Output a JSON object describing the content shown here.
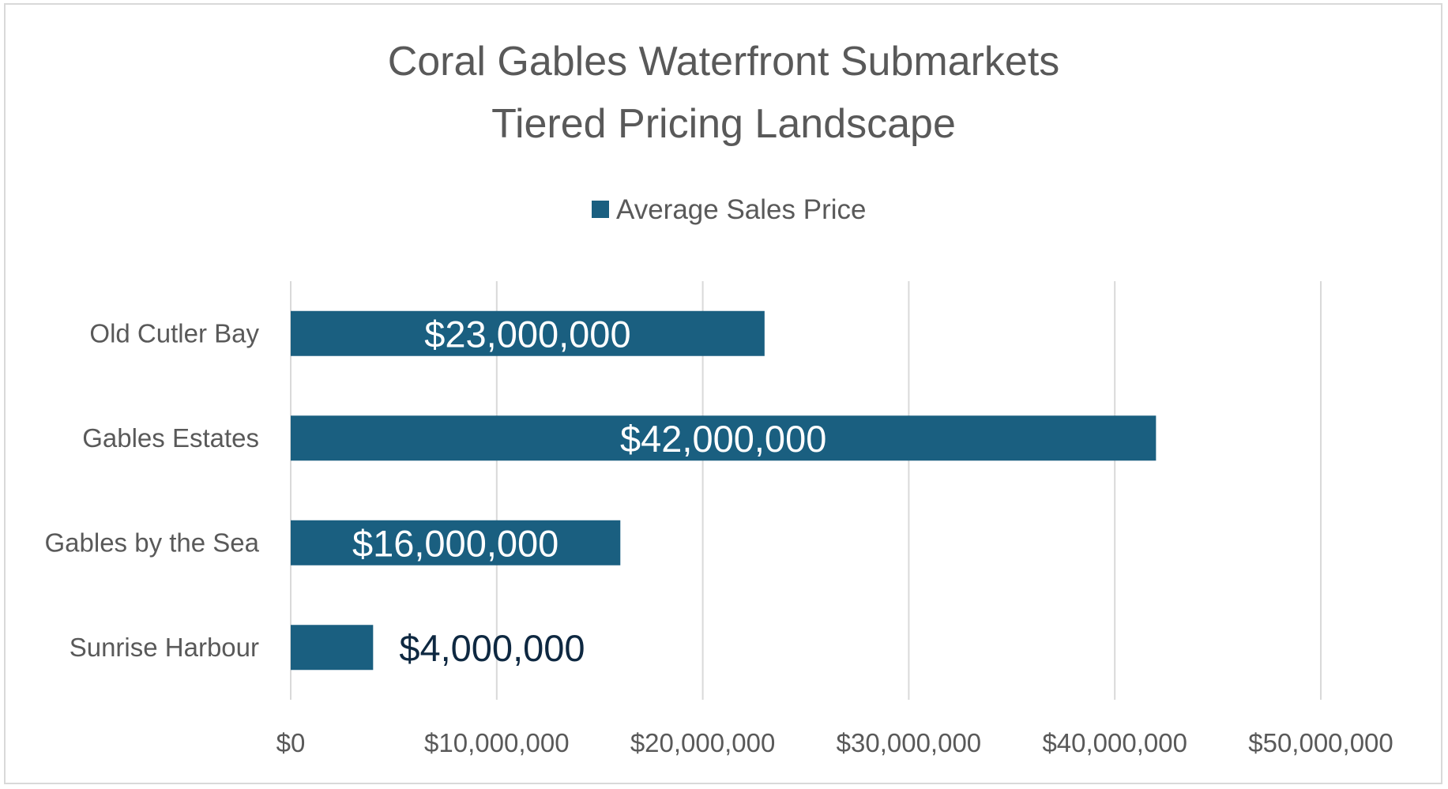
{
  "chart_data": {
    "type": "bar",
    "orientation": "horizontal",
    "title": [
      "Coral Gables Waterfront Submarkets",
      "Tiered Pricing Landscape"
    ],
    "legend": {
      "position": "top",
      "entries": [
        "Average Sales Price"
      ]
    },
    "categories": [
      "Old Cutler Bay",
      "Gables Estates",
      "Gables by the Sea",
      "Sunrise Harbour"
    ],
    "series": [
      {
        "name": "Average Sales Price",
        "color": "#1a5f80",
        "values": [
          23000000,
          42000000,
          16000000,
          4000000
        ],
        "labels": [
          "$23,000,000",
          "$42,000,000",
          "$16,000,000",
          "$4,000,000"
        ]
      }
    ],
    "xlim": [
      0,
      50000000
    ],
    "x_ticks": [
      "$0",
      "$10,000,000",
      "$20,000,000",
      "$30,000,000",
      "$40,000,000",
      "$50,000,000"
    ],
    "grid": "vertical",
    "xlabel": "",
    "ylabel": ""
  }
}
